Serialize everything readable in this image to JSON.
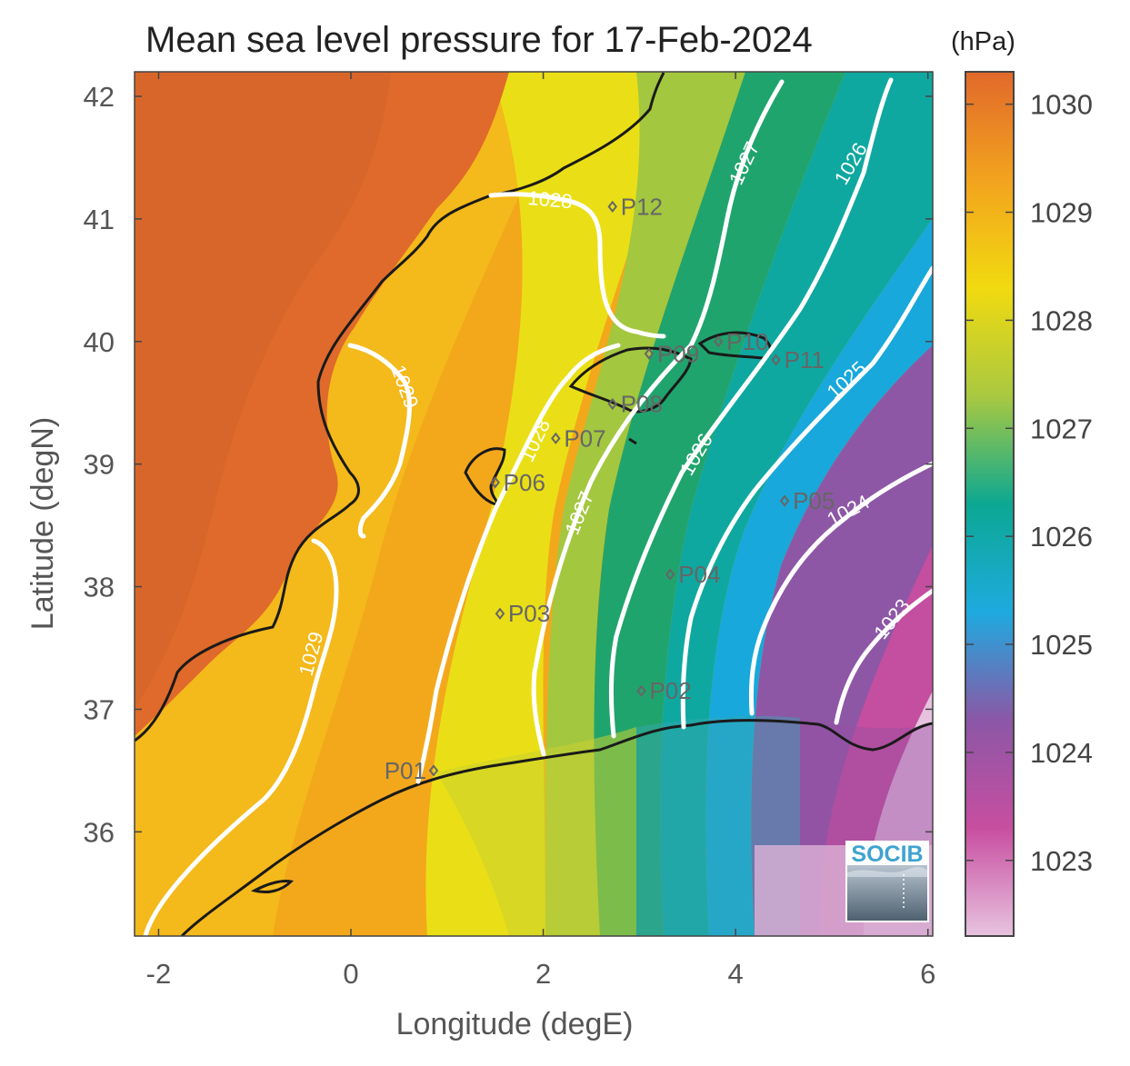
{
  "title": "Mean sea level pressure for 17-Feb-2024",
  "colorbar": {
    "unit": "(hPa)",
    "ticks": [
      1023,
      1024,
      1025,
      1026,
      1027,
      1028,
      1029,
      1030
    ],
    "range": [
      1022.3,
      1030.3
    ],
    "colors": [
      "#e7c3df",
      "#c84ea0",
      "#8b57a6",
      "#1eaadf",
      "#0ca892",
      "#a9c940",
      "#f1da10",
      "#f2a31e",
      "#e1692b"
    ]
  },
  "axes": {
    "xlabel": "Longitude (degE)",
    "ylabel": "Latitude (degN)",
    "xlim": [
      -2.25,
      6.05
    ],
    "ylim": [
      35.15,
      42.2
    ],
    "xticks": [
      -2,
      0,
      2,
      4,
      6
    ],
    "yticks": [
      36,
      37,
      38,
      39,
      40,
      41,
      42
    ]
  },
  "contours": [
    {
      "level": 1023,
      "label": "1023"
    },
    {
      "level": 1024,
      "label": "1024"
    },
    {
      "level": 1025,
      "label": "1025"
    },
    {
      "level": 1026,
      "label": "1026"
    },
    {
      "level": 1027,
      "label": "1027"
    },
    {
      "level": 1028,
      "label": "1028"
    },
    {
      "level": 1029,
      "label": "1029"
    }
  ],
  "stations": [
    {
      "name": "P01",
      "lon": 0.86,
      "lat": 36.5
    },
    {
      "name": "P02",
      "lon": 3.02,
      "lat": 37.15
    },
    {
      "name": "P03",
      "lon": 1.55,
      "lat": 37.78
    },
    {
      "name": "P04",
      "lon": 3.32,
      "lat": 38.1
    },
    {
      "name": "P05",
      "lon": 4.51,
      "lat": 38.7
    },
    {
      "name": "P06",
      "lon": 1.5,
      "lat": 38.85
    },
    {
      "name": "P07",
      "lon": 2.13,
      "lat": 39.21
    },
    {
      "name": "P08",
      "lon": 2.72,
      "lat": 39.49
    },
    {
      "name": "P09",
      "lon": 3.1,
      "lat": 39.9
    },
    {
      "name": "P10",
      "lon": 3.82,
      "lat": 40.0
    },
    {
      "name": "P11",
      "lon": 4.42,
      "lat": 39.85
    },
    {
      "name": "P12",
      "lon": 2.72,
      "lat": 41.1
    }
  ],
  "logo": {
    "text": "SOCIB"
  }
}
